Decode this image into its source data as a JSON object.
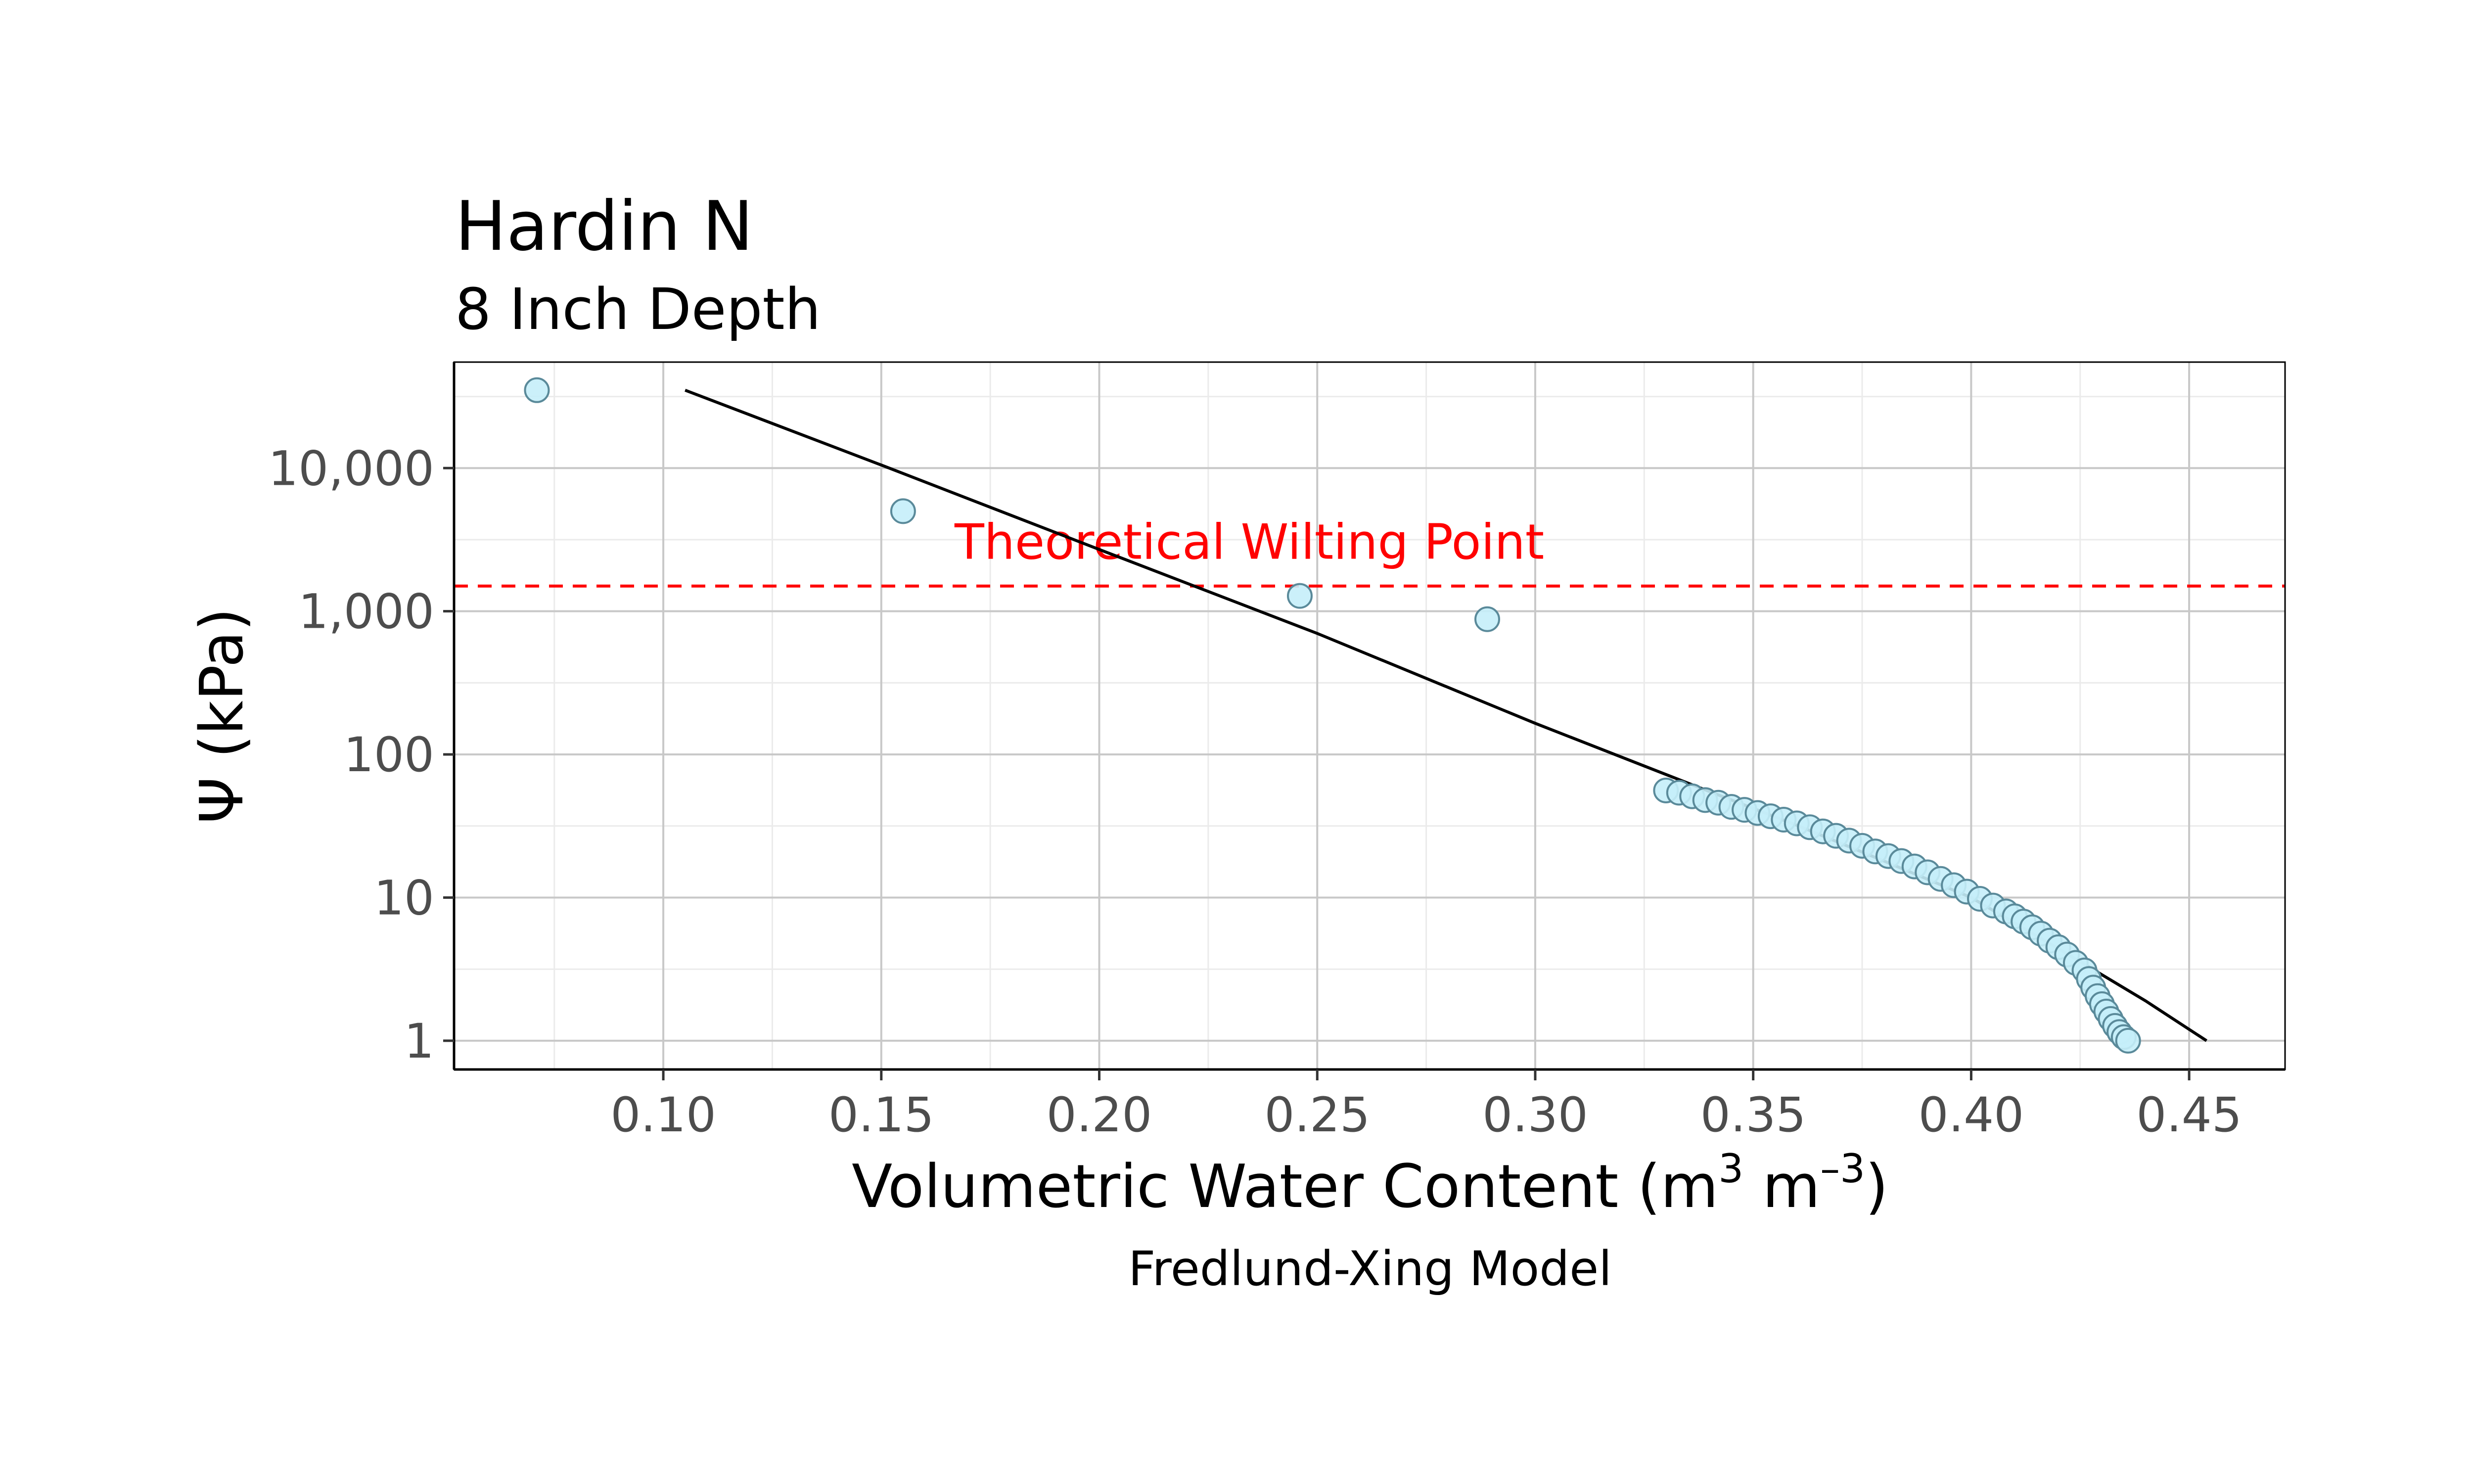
{
  "chart_data": {
    "type": "scatter",
    "title": "Hardin N",
    "subtitle": "8 Inch Depth",
    "xlabel": {
      "main": "Volumetric Water Content (m",
      "sup1": "3",
      "mid": " m",
      "sup2": "–3",
      "end": ")"
    },
    "ylabel": "Ψ (kPa)",
    "caption": "Fredlund-Xing Model",
    "annotation": {
      "text": "Theoretical Wilting Point",
      "y": 1500,
      "x": 0.16,
      "color": "#ff0000"
    },
    "x_scale": "linear",
    "y_scale": "log",
    "xlim": [
      0.052,
      0.472
    ],
    "ylim": [
      0.63,
      55000
    ],
    "x_ticks": [
      0.1,
      0.15,
      0.2,
      0.25,
      0.3,
      0.35,
      0.4,
      0.45
    ],
    "x_tick_labels": [
      "0.10",
      "0.15",
      "0.20",
      "0.25",
      "0.30",
      "0.35",
      "0.40",
      "0.45"
    ],
    "y_ticks": [
      1,
      10,
      100,
      1000,
      10000
    ],
    "y_tick_labels": [
      "1",
      "10",
      "100",
      "1,000",
      "10,000"
    ],
    "grid": true,
    "point_fill": "#c5eefa",
    "point_stroke": "#5a8a9a",
    "line_color": "#000000",
    "points": [
      [
        0.071,
        35000
      ],
      [
        0.155,
        5000
      ],
      [
        0.246,
        1280
      ],
      [
        0.289,
        880
      ],
      [
        0.33,
        56
      ],
      [
        0.333,
        54
      ],
      [
        0.336,
        51
      ],
      [
        0.339,
        48
      ],
      [
        0.342,
        46
      ],
      [
        0.345,
        43
      ],
      [
        0.348,
        41
      ],
      [
        0.351,
        39
      ],
      [
        0.354,
        37
      ],
      [
        0.357,
        35
      ],
      [
        0.36,
        33
      ],
      [
        0.363,
        31
      ],
      [
        0.366,
        29
      ],
      [
        0.369,
        27
      ],
      [
        0.372,
        25
      ],
      [
        0.375,
        23
      ],
      [
        0.378,
        21
      ],
      [
        0.381,
        19.5
      ],
      [
        0.384,
        18
      ],
      [
        0.387,
        16.5
      ],
      [
        0.39,
        15
      ],
      [
        0.393,
        13.5
      ],
      [
        0.396,
        12.2
      ],
      [
        0.399,
        11
      ],
      [
        0.402,
        9.8
      ],
      [
        0.405,
        8.8
      ],
      [
        0.408,
        8
      ],
      [
        0.41,
        7.4
      ],
      [
        0.412,
        6.8
      ],
      [
        0.414,
        6.2
      ],
      [
        0.416,
        5.6
      ],
      [
        0.418,
        5
      ],
      [
        0.42,
        4.5
      ],
      [
        0.422,
        4
      ],
      [
        0.424,
        3.5
      ],
      [
        0.426,
        3.1
      ],
      [
        0.427,
        2.7
      ],
      [
        0.428,
        2.35
      ],
      [
        0.429,
        2.05
      ],
      [
        0.43,
        1.8
      ],
      [
        0.431,
        1.6
      ],
      [
        0.432,
        1.42
      ],
      [
        0.433,
        1.27
      ],
      [
        0.434,
        1.15
      ],
      [
        0.435,
        1.06
      ],
      [
        0.436,
        1.0
      ]
    ],
    "fit_line": [
      [
        0.105,
        35000
      ],
      [
        0.15,
        10500
      ],
      [
        0.2,
        2700
      ],
      [
        0.25,
        700
      ],
      [
        0.3,
        165
      ],
      [
        0.34,
        55
      ],
      [
        0.36,
        32
      ],
      [
        0.38,
        18
      ],
      [
        0.4,
        10
      ],
      [
        0.42,
        4.4
      ],
      [
        0.44,
        1.9
      ],
      [
        0.454,
        1.0
      ]
    ]
  }
}
